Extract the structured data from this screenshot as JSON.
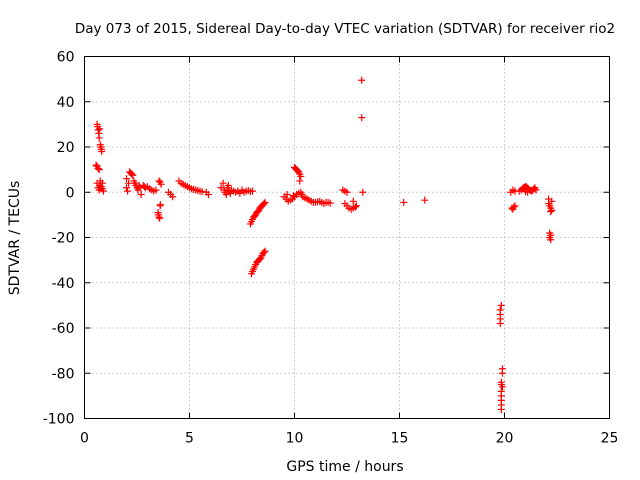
{
  "chart_data": {
    "type": "scatter",
    "title": "Day 073 of 2015, Sidereal Day-to-day VTEC variation (SDTVAR) for receiver rio2",
    "xlabel": "GPS time / hours",
    "ylabel": "SDTVAR / TECUs",
    "xlim": [
      0,
      25
    ],
    "ylim": [
      -100,
      60
    ],
    "xticks": [
      0,
      5,
      10,
      15,
      20,
      25
    ],
    "yticks": [
      -100,
      -80,
      -60,
      -40,
      -20,
      0,
      20,
      40,
      60
    ],
    "grid": true,
    "marker": "+",
    "color": "#ff0000",
    "series": [
      {
        "name": "SDTVAR",
        "points": [
          [
            0.6,
            30
          ],
          [
            0.62,
            29
          ],
          [
            0.65,
            27.5
          ],
          [
            0.68,
            26
          ],
          [
            0.7,
            24
          ],
          [
            0.72,
            28
          ],
          [
            0.75,
            21
          ],
          [
            0.78,
            20
          ],
          [
            0.8,
            19
          ],
          [
            0.82,
            18
          ],
          [
            0.55,
            12
          ],
          [
            0.6,
            11.5
          ],
          [
            0.65,
            10.5
          ],
          [
            0.7,
            10
          ],
          [
            0.6,
            4
          ],
          [
            0.65,
            2
          ],
          [
            0.7,
            1
          ],
          [
            0.72,
            3
          ],
          [
            0.75,
            5
          ],
          [
            0.8,
            2.5
          ],
          [
            0.85,
            1.5
          ],
          [
            0.9,
            0.5
          ],
          [
            0.85,
            4
          ],
          [
            2.0,
            6
          ],
          [
            2.0,
            2
          ],
          [
            2.05,
            0.5
          ],
          [
            2.1,
            4
          ],
          [
            2.15,
            9
          ],
          [
            2.2,
            8.5
          ],
          [
            2.25,
            8
          ],
          [
            2.3,
            7.5
          ],
          [
            2.35,
            5
          ],
          [
            2.4,
            4
          ],
          [
            2.45,
            3
          ],
          [
            2.5,
            2
          ],
          [
            2.55,
            1
          ],
          [
            2.6,
            3
          ],
          [
            2.65,
            2
          ],
          [
            2.7,
            -1
          ],
          [
            2.8,
            3
          ],
          [
            2.85,
            2.5
          ],
          [
            2.9,
            2
          ],
          [
            3.0,
            2.5
          ],
          [
            3.1,
            1.5
          ],
          [
            3.2,
            1
          ],
          [
            3.3,
            0.5
          ],
          [
            3.4,
            1
          ],
          [
            3.5,
            -9
          ],
          [
            3.52,
            -10
          ],
          [
            3.55,
            -11
          ],
          [
            3.58,
            -11.5
          ],
          [
            3.6,
            -6
          ],
          [
            3.62,
            -5.5
          ],
          [
            3.55,
            5
          ],
          [
            3.6,
            4.5
          ],
          [
            3.65,
            3.5
          ],
          [
            4.0,
            0
          ],
          [
            4.1,
            -1
          ],
          [
            4.2,
            -2
          ],
          [
            4.5,
            5
          ],
          [
            4.6,
            4
          ],
          [
            4.7,
            3.5
          ],
          [
            4.8,
            3
          ],
          [
            4.9,
            2.5
          ],
          [
            5.0,
            2
          ],
          [
            5.1,
            1.5
          ],
          [
            5.2,
            1.2
          ],
          [
            5.3,
            1
          ],
          [
            5.4,
            0.8
          ],
          [
            5.5,
            0.5
          ],
          [
            5.6,
            0.3
          ],
          [
            5.8,
            0
          ],
          [
            5.9,
            -1
          ],
          [
            6.5,
            2
          ],
          [
            6.6,
            4
          ],
          [
            6.65,
            1
          ],
          [
            6.7,
            0
          ],
          [
            6.75,
            -1
          ],
          [
            6.8,
            2
          ],
          [
            6.85,
            3
          ],
          [
            6.9,
            0.5
          ],
          [
            6.95,
            -0.5
          ],
          [
            7.0,
            1
          ],
          [
            7.1,
            0.5
          ],
          [
            7.2,
            0
          ],
          [
            7.3,
            0.5
          ],
          [
            7.4,
            -0.5
          ],
          [
            7.5,
            1
          ],
          [
            7.6,
            0
          ],
          [
            7.7,
            0.5
          ],
          [
            7.8,
            0.8
          ],
          [
            7.9,
            0.3
          ],
          [
            8.0,
            0.5
          ],
          [
            7.9,
            -14
          ],
          [
            7.95,
            -13
          ],
          [
            8.0,
            -12
          ],
          [
            8.05,
            -11
          ],
          [
            8.1,
            -10.5
          ],
          [
            8.15,
            -10
          ],
          [
            8.2,
            -9
          ],
          [
            8.25,
            -8.5
          ],
          [
            8.3,
            -8
          ],
          [
            8.35,
            -7
          ],
          [
            8.4,
            -6.5
          ],
          [
            8.45,
            -6
          ],
          [
            8.5,
            -5.5
          ],
          [
            8.55,
            -5
          ],
          [
            8.6,
            -4.5
          ],
          [
            7.95,
            -36
          ],
          [
            8.0,
            -35
          ],
          [
            8.05,
            -34
          ],
          [
            8.1,
            -33
          ],
          [
            8.15,
            -32
          ],
          [
            8.2,
            -31
          ],
          [
            8.25,
            -30.5
          ],
          [
            8.3,
            -30
          ],
          [
            8.35,
            -29.5
          ],
          [
            8.4,
            -29
          ],
          [
            8.45,
            -28
          ],
          [
            8.5,
            -27
          ],
          [
            8.55,
            -26.5
          ],
          [
            8.6,
            -26
          ],
          [
            9.5,
            -2
          ],
          [
            9.6,
            -3
          ],
          [
            9.7,
            -4
          ],
          [
            9.8,
            -3.5
          ],
          [
            9.9,
            -3
          ],
          [
            9.65,
            -1
          ],
          [
            10.0,
            11
          ],
          [
            10.05,
            10.5
          ],
          [
            10.1,
            10
          ],
          [
            10.15,
            9.5
          ],
          [
            10.2,
            9
          ],
          [
            10.25,
            8
          ],
          [
            10.3,
            7
          ],
          [
            10.25,
            5
          ],
          [
            9.95,
            -1.5
          ],
          [
            10.0,
            -2
          ],
          [
            10.1,
            -1
          ],
          [
            10.2,
            -0.5
          ],
          [
            10.3,
            0
          ],
          [
            10.35,
            -1
          ],
          [
            10.4,
            -2
          ],
          [
            10.5,
            -2.5
          ],
          [
            10.6,
            -3
          ],
          [
            10.7,
            -3.5
          ],
          [
            10.8,
            -4
          ],
          [
            10.9,
            -4.5
          ],
          [
            11.0,
            -4.5
          ],
          [
            11.1,
            -4.2
          ],
          [
            11.2,
            -4
          ],
          [
            11.3,
            -4.5
          ],
          [
            11.4,
            -5
          ],
          [
            11.5,
            -4.5
          ],
          [
            11.6,
            -4.5
          ],
          [
            11.7,
            -4.8
          ],
          [
            12.3,
            1
          ],
          [
            12.4,
            0.5
          ],
          [
            12.5,
            0
          ],
          [
            12.4,
            -5
          ],
          [
            12.5,
            -6
          ],
          [
            12.6,
            -7
          ],
          [
            12.7,
            -7.5
          ],
          [
            12.8,
            -7
          ],
          [
            12.9,
            -6.5
          ],
          [
            12.95,
            -6
          ],
          [
            12.8,
            -4
          ],
          [
            13.2,
            49.5
          ],
          [
            13.2,
            33
          ],
          [
            13.25,
            0
          ],
          [
            15.2,
            -4.5
          ],
          [
            16.2,
            -3.5
          ],
          [
            19.85,
            -50
          ],
          [
            19.8,
            -52
          ],
          [
            19.8,
            -54
          ],
          [
            19.8,
            -56
          ],
          [
            19.8,
            -58
          ],
          [
            19.9,
            -78
          ],
          [
            19.9,
            -80
          ],
          [
            19.85,
            -84
          ],
          [
            19.85,
            -85
          ],
          [
            19.9,
            -86
          ],
          [
            19.85,
            -88
          ],
          [
            19.85,
            -90
          ],
          [
            19.85,
            -92
          ],
          [
            19.85,
            -94
          ],
          [
            19.85,
            -96
          ],
          [
            20.3,
            0
          ],
          [
            20.35,
            -7
          ],
          [
            20.4,
            -7.5
          ],
          [
            20.45,
            -6.5
          ],
          [
            20.5,
            -6
          ],
          [
            20.4,
            1
          ],
          [
            20.5,
            0.5
          ],
          [
            20.7,
            0.5
          ],
          [
            20.8,
            1
          ],
          [
            20.85,
            1.5
          ],
          [
            20.9,
            2
          ],
          [
            20.95,
            2.2
          ],
          [
            21.0,
            2.5
          ],
          [
            21.05,
            2.3
          ],
          [
            21.1,
            1.8
          ],
          [
            21.15,
            1.5
          ],
          [
            21.2,
            1
          ],
          [
            21.25,
            0.8
          ],
          [
            21.3,
            0.5
          ],
          [
            21.35,
            1
          ],
          [
            21.4,
            1.5
          ],
          [
            21.45,
            2
          ],
          [
            21.5,
            1
          ],
          [
            21.1,
            0
          ],
          [
            21.0,
            0.3
          ],
          [
            22.1,
            -5
          ],
          [
            22.15,
            -6
          ],
          [
            22.2,
            -7
          ],
          [
            22.25,
            -8
          ],
          [
            22.1,
            -3
          ],
          [
            22.15,
            -18
          ],
          [
            22.2,
            -19
          ],
          [
            22.15,
            -20
          ],
          [
            22.2,
            -21
          ],
          [
            22.2,
            -8.5
          ],
          [
            22.25,
            -4
          ]
        ]
      }
    ]
  }
}
